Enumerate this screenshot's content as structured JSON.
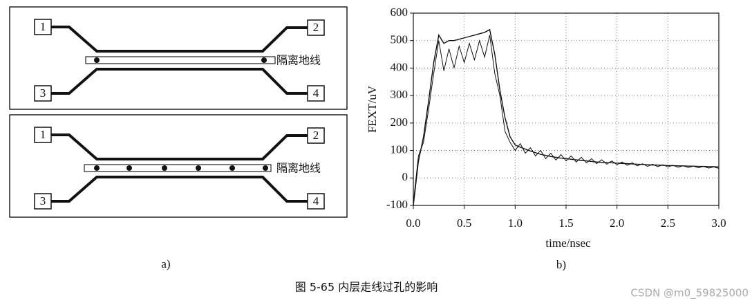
{
  "diagram": {
    "label": "a)",
    "panels": [
      {
        "ports": [
          "1",
          "2",
          "3",
          "4"
        ],
        "ground_label": "隔离地线"
      },
      {
        "ports": [
          "1",
          "2",
          "3",
          "4"
        ],
        "ground_label": "隔离地线"
      }
    ]
  },
  "chart_data": {
    "type": "line",
    "label": "b)",
    "x_label": "time/nsec",
    "y_label": "FEXT/uV",
    "x": [
      0,
      0.05,
      0.1,
      0.15,
      0.2,
      0.25,
      0.3,
      0.35,
      0.4,
      0.45,
      0.5,
      0.55,
      0.6,
      0.65,
      0.7,
      0.75,
      0.8,
      0.85,
      0.9,
      0.95,
      1.0,
      1.05,
      1.1,
      1.15,
      1.2,
      1.25,
      1.3,
      1.35,
      1.4,
      1.45,
      1.5,
      1.55,
      1.6,
      1.65,
      1.7,
      1.75,
      1.8,
      1.85,
      1.9,
      1.95,
      2.0,
      2.05,
      2.1,
      2.15,
      2.2,
      2.25,
      2.3,
      2.35,
      2.4,
      2.45,
      2.5,
      2.55,
      2.6,
      2.65,
      2.7,
      2.75,
      2.8,
      2.85,
      2.9,
      2.95,
      3.0
    ],
    "series": [
      {
        "color": "#111111",
        "values": [
          -100,
          60,
          150,
          280,
          420,
          520,
          490,
          500,
          500,
          505,
          510,
          515,
          520,
          525,
          530,
          540,
          450,
          320,
          220,
          150,
          120,
          112,
          105,
          98,
          92,
          86,
          82,
          78,
          75,
          72,
          70,
          68,
          66,
          64,
          62,
          60,
          58,
          57,
          56,
          55,
          54,
          53,
          52,
          51,
          50,
          49,
          48,
          47,
          47,
          46,
          45,
          45,
          44,
          44,
          43,
          43,
          42,
          42,
          41,
          41,
          40
        ]
      },
      {
        "color": "#111111",
        "values": [
          -90,
          80,
          130,
          250,
          380,
          500,
          390,
          470,
          400,
          480,
          420,
          490,
          430,
          500,
          440,
          520,
          380,
          300,
          170,
          130,
          100,
          125,
          90,
          110,
          80,
          100,
          70,
          90,
          65,
          85,
          62,
          80,
          58,
          75,
          55,
          70,
          52,
          66,
          50,
          62,
          48,
          58,
          46,
          55,
          44,
          52,
          42,
          50,
          41,
          48,
          40,
          46,
          39,
          44,
          38,
          43,
          37,
          42,
          36,
          40,
          35
        ]
      }
    ],
    "xlim": [
      0,
      3.0
    ],
    "xticks": [
      {
        "value": 0,
        "label": "0.0"
      },
      {
        "value": 0.5,
        "label": "0.5"
      },
      {
        "value": 1.0,
        "label": "1.0"
      },
      {
        "value": 1.5,
        "label": "1.5"
      },
      {
        "value": 2.0,
        "label": "2.0"
      },
      {
        "value": 2.5,
        "label": "2.5"
      },
      {
        "value": 3.0,
        "label": "3.0"
      }
    ],
    "ylim": [
      -100,
      600
    ],
    "yticks": [
      -100,
      0,
      100,
      200,
      300,
      400,
      500,
      600
    ],
    "grid": true
  },
  "caption": "图 5-65   内层走线过孔的影响",
  "watermark": "CSDN @m0_59825000"
}
